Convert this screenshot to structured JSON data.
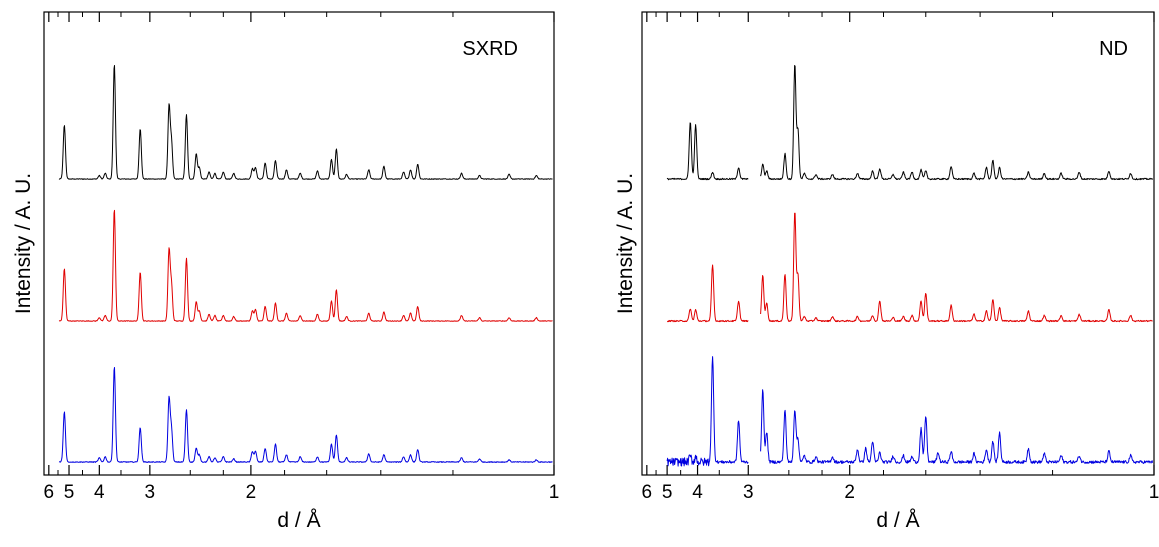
{
  "chart_data": [
    {
      "type": "line",
      "panel_label": "SXRD",
      "xlabel": "d / Å",
      "ylabel": "Intensity / A. U.",
      "x_scale": "reciprocal",
      "xlim": [
        6.3,
        1
      ],
      "xticks": [
        {
          "value": 6,
          "label": "6"
        },
        {
          "value": 5,
          "label": "5"
        },
        {
          "value": 4,
          "label": "4"
        },
        {
          "value": 3,
          "label": "3"
        },
        {
          "value": 2,
          "label": "2"
        },
        {
          "value": 1,
          "label": "1"
        }
      ],
      "minor_xticks": [
        5.5,
        4.5,
        3.5,
        2.5,
        2.2,
        1.8,
        1.6,
        1.4,
        1.2
      ],
      "series": [
        {
          "color": "#000000",
          "baseline": 0.295,
          "scale": 0.23,
          "noise": 0.003,
          "gap": null,
          "peaks": [
            [
              5.2,
              0.47
            ],
            [
              4.0,
              0.03
            ],
            [
              3.85,
              0.05
            ],
            [
              3.64,
              1.0
            ],
            [
              3.15,
              0.44
            ],
            [
              2.74,
              0.63
            ],
            [
              2.71,
              0.32
            ],
            [
              2.54,
              0.56
            ],
            [
              2.44,
              0.22
            ],
            [
              2.41,
              0.1
            ],
            [
              2.32,
              0.06
            ],
            [
              2.27,
              0.05
            ],
            [
              2.2,
              0.06
            ],
            [
              2.12,
              0.05
            ],
            [
              1.99,
              0.09
            ],
            [
              1.97,
              0.1
            ],
            [
              1.91,
              0.14
            ],
            [
              1.85,
              0.16
            ],
            [
              1.79,
              0.08
            ],
            [
              1.72,
              0.05
            ],
            [
              1.64,
              0.07
            ],
            [
              1.58,
              0.17
            ],
            [
              1.56,
              0.26
            ],
            [
              1.52,
              0.04
            ],
            [
              1.44,
              0.08
            ],
            [
              1.39,
              0.11
            ],
            [
              1.33,
              0.06
            ],
            [
              1.31,
              0.08
            ],
            [
              1.29,
              0.13
            ],
            [
              1.18,
              0.05
            ],
            [
              1.14,
              0.03
            ],
            [
              1.08,
              0.04
            ],
            [
              1.03,
              0.03
            ]
          ]
        },
        {
          "color": "#e00000",
          "baseline": 0.295,
          "scale": 0.23,
          "noise": 0.003,
          "gap": null,
          "peaks": [
            [
              5.2,
              0.47
            ],
            [
              4.0,
              0.03
            ],
            [
              3.85,
              0.05
            ],
            [
              3.64,
              1.0
            ],
            [
              3.15,
              0.44
            ],
            [
              2.74,
              0.63
            ],
            [
              2.71,
              0.32
            ],
            [
              2.54,
              0.56
            ],
            [
              2.44,
              0.17
            ],
            [
              2.41,
              0.09
            ],
            [
              2.32,
              0.06
            ],
            [
              2.27,
              0.05
            ],
            [
              2.2,
              0.05
            ],
            [
              2.12,
              0.04
            ],
            [
              1.99,
              0.09
            ],
            [
              1.97,
              0.1
            ],
            [
              1.91,
              0.13
            ],
            [
              1.85,
              0.16
            ],
            [
              1.79,
              0.07
            ],
            [
              1.72,
              0.05
            ],
            [
              1.64,
              0.06
            ],
            [
              1.58,
              0.18
            ],
            [
              1.56,
              0.28
            ],
            [
              1.52,
              0.04
            ],
            [
              1.44,
              0.07
            ],
            [
              1.39,
              0.08
            ],
            [
              1.33,
              0.05
            ],
            [
              1.31,
              0.07
            ],
            [
              1.29,
              0.13
            ],
            [
              1.18,
              0.05
            ],
            [
              1.14,
              0.03
            ],
            [
              1.08,
              0.03
            ],
            [
              1.03,
              0.03
            ]
          ]
        },
        {
          "color": "#0000e0",
          "baseline": 0.295,
          "scale": 0.23,
          "noise": 0.004,
          "gap": null,
          "peaks": [
            [
              5.2,
              0.48
            ],
            [
              4.0,
              0.04
            ],
            [
              3.85,
              0.05
            ],
            [
              3.64,
              0.91
            ],
            [
              3.15,
              0.33
            ],
            [
              2.74,
              0.6
            ],
            [
              2.71,
              0.31
            ],
            [
              2.54,
              0.5
            ],
            [
              2.44,
              0.13
            ],
            [
              2.41,
              0.07
            ],
            [
              2.32,
              0.05
            ],
            [
              2.27,
              0.04
            ],
            [
              2.2,
              0.05
            ],
            [
              2.12,
              0.03
            ],
            [
              1.99,
              0.1
            ],
            [
              1.97,
              0.1
            ],
            [
              1.91,
              0.13
            ],
            [
              1.85,
              0.17
            ],
            [
              1.79,
              0.07
            ],
            [
              1.72,
              0.05
            ],
            [
              1.64,
              0.05
            ],
            [
              1.58,
              0.17
            ],
            [
              1.56,
              0.26
            ],
            [
              1.52,
              0.04
            ],
            [
              1.44,
              0.08
            ],
            [
              1.39,
              0.07
            ],
            [
              1.33,
              0.05
            ],
            [
              1.31,
              0.07
            ],
            [
              1.29,
              0.12
            ],
            [
              1.18,
              0.04
            ],
            [
              1.14,
              0.03
            ],
            [
              1.08,
              0.02
            ],
            [
              1.03,
              0.02
            ]
          ]
        }
      ]
    },
    {
      "type": "line",
      "panel_label": "ND",
      "xlabel": "d / Å",
      "ylabel": "Intensity / A. U.",
      "x_scale": "reciprocal",
      "xlim": [
        6.3,
        1
      ],
      "xticks": [
        {
          "value": 6,
          "label": "6"
        },
        {
          "value": 5,
          "label": "5"
        },
        {
          "value": 4,
          "label": "4"
        },
        {
          "value": 3,
          "label": "3"
        },
        {
          "value": 2,
          "label": "2"
        },
        {
          "value": 1,
          "label": "1"
        }
      ],
      "minor_xticks": [
        5.5,
        4.5,
        3.5,
        2.5,
        2.2,
        1.8,
        1.6,
        1.4,
        1.2
      ],
      "series": [
        {
          "color": "#000000",
          "baseline": 0.295,
          "scale": 0.26,
          "noise": 0.006,
          "gap": [
            3.0,
            2.83
          ],
          "peaks": [
            [
              4.2,
              0.5
            ],
            [
              4.05,
              0.47
            ],
            [
              3.64,
              0.06
            ],
            [
              3.15,
              0.1
            ],
            [
              2.8,
              0.13
            ],
            [
              2.75,
              0.07
            ],
            [
              2.54,
              0.22
            ],
            [
              2.44,
              1.0
            ],
            [
              2.41,
              0.43
            ],
            [
              2.35,
              0.05
            ],
            [
              2.25,
              0.04
            ],
            [
              2.12,
              0.04
            ],
            [
              1.95,
              0.05
            ],
            [
              1.86,
              0.07
            ],
            [
              1.82,
              0.09
            ],
            [
              1.75,
              0.04
            ],
            [
              1.7,
              0.06
            ],
            [
              1.66,
              0.06
            ],
            [
              1.62,
              0.08
            ],
            [
              1.6,
              0.07
            ],
            [
              1.5,
              0.11
            ],
            [
              1.42,
              0.05
            ],
            [
              1.38,
              0.1
            ],
            [
              1.36,
              0.16
            ],
            [
              1.34,
              0.1
            ],
            [
              1.26,
              0.06
            ],
            [
              1.22,
              0.05
            ],
            [
              1.18,
              0.05
            ],
            [
              1.14,
              0.06
            ],
            [
              1.08,
              0.07
            ],
            [
              1.04,
              0.05
            ]
          ]
        },
        {
          "color": "#e00000",
          "baseline": 0.295,
          "scale": 0.26,
          "noise": 0.006,
          "gap": [
            3.0,
            2.83
          ],
          "peaks": [
            [
              4.2,
              0.11
            ],
            [
              4.05,
              0.1
            ],
            [
              3.64,
              0.5
            ],
            [
              3.15,
              0.18
            ],
            [
              2.8,
              0.41
            ],
            [
              2.75,
              0.16
            ],
            [
              2.54,
              0.42
            ],
            [
              2.44,
              0.98
            ],
            [
              2.41,
              0.41
            ],
            [
              2.35,
              0.04
            ],
            [
              2.25,
              0.03
            ],
            [
              2.12,
              0.04
            ],
            [
              1.95,
              0.04
            ],
            [
              1.86,
              0.05
            ],
            [
              1.82,
              0.18
            ],
            [
              1.75,
              0.03
            ],
            [
              1.7,
              0.04
            ],
            [
              1.66,
              0.05
            ],
            [
              1.62,
              0.18
            ],
            [
              1.6,
              0.25
            ],
            [
              1.5,
              0.14
            ],
            [
              1.42,
              0.06
            ],
            [
              1.38,
              0.09
            ],
            [
              1.36,
              0.19
            ],
            [
              1.34,
              0.12
            ],
            [
              1.26,
              0.09
            ],
            [
              1.22,
              0.05
            ],
            [
              1.18,
              0.05
            ],
            [
              1.14,
              0.06
            ],
            [
              1.08,
              0.1
            ],
            [
              1.04,
              0.05
            ]
          ]
        },
        {
          "color": "#0000e0",
          "baseline": 0.295,
          "scale": 0.26,
          "noise": 0.014,
          "gap": [
            3.0,
            2.83
          ],
          "peaks": [
            [
              4.2,
              0.05
            ],
            [
              4.05,
              0.05
            ],
            [
              3.64,
              1.0
            ],
            [
              3.15,
              0.4
            ],
            [
              2.8,
              0.68
            ],
            [
              2.75,
              0.28
            ],
            [
              2.54,
              0.5
            ],
            [
              2.44,
              0.5
            ],
            [
              2.41,
              0.22
            ],
            [
              2.35,
              0.06
            ],
            [
              2.25,
              0.05
            ],
            [
              2.12,
              0.05
            ],
            [
              1.95,
              0.12
            ],
            [
              1.9,
              0.13
            ],
            [
              1.86,
              0.2
            ],
            [
              1.82,
              0.09
            ],
            [
              1.75,
              0.06
            ],
            [
              1.7,
              0.06
            ],
            [
              1.66,
              0.05
            ],
            [
              1.62,
              0.32
            ],
            [
              1.6,
              0.44
            ],
            [
              1.55,
              0.09
            ],
            [
              1.5,
              0.1
            ],
            [
              1.42,
              0.08
            ],
            [
              1.38,
              0.12
            ],
            [
              1.36,
              0.2
            ],
            [
              1.34,
              0.28
            ],
            [
              1.26,
              0.13
            ],
            [
              1.22,
              0.08
            ],
            [
              1.18,
              0.06
            ],
            [
              1.14,
              0.06
            ],
            [
              1.08,
              0.1
            ],
            [
              1.04,
              0.06
            ]
          ]
        }
      ]
    }
  ]
}
